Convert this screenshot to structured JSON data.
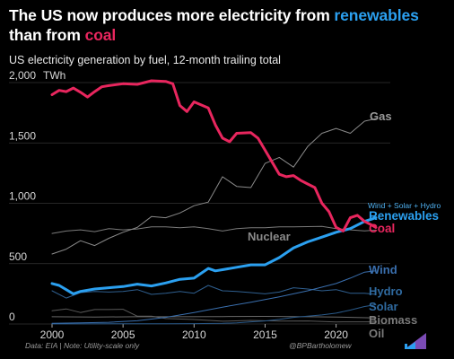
{
  "header": {
    "title_part1": "The US now produces more electricity from ",
    "title_highlight1": "renewables",
    "title_part2": "than from ",
    "title_highlight2": "coal",
    "subtitle": "US electricity generation by fuel, 12-month trailing total"
  },
  "footer": {
    "source": "Data: EIA | Note: Utility-scale only",
    "credit": "@BPBartholomew"
  },
  "colors": {
    "coal": "#e8265e",
    "renewables": "#2ba0f0",
    "gas": "#8a8a8a",
    "nuclear": "#7a7a7a",
    "wind": "#3a6fae",
    "hydro": "#2f5f8f",
    "solar": "#2a5a8a",
    "biomass": "#6a6a6a",
    "oil": "#5a5a5a",
    "grid": "#333333"
  },
  "chart_data": {
    "type": "line",
    "unit_label": "TWh",
    "xlim": [
      2000,
      2023.5
    ],
    "ylim": [
      0,
      2000
    ],
    "x_ticks": [
      "2000",
      "2005",
      "2010",
      "2015",
      "2020"
    ],
    "y_ticks": [
      "2,000",
      "1,500",
      "1,000",
      "500",
      "0"
    ],
    "annotation": "Wind + Solar + Hydro",
    "series": [
      {
        "name": "Coal",
        "label": "Coal",
        "points": [
          [
            2000,
            1900
          ],
          [
            2000.5,
            1935
          ],
          [
            2001,
            1925
          ],
          [
            2001.5,
            1955
          ],
          [
            2002,
            1920
          ],
          [
            2002.5,
            1880
          ],
          [
            2003,
            1925
          ],
          [
            2003.5,
            1965
          ],
          [
            2004,
            1975
          ],
          [
            2005,
            1990
          ],
          [
            2006,
            1985
          ],
          [
            2007,
            2015
          ],
          [
            2008,
            2010
          ],
          [
            2008.5,
            1990
          ],
          [
            2009,
            1810
          ],
          [
            2009.5,
            1760
          ],
          [
            2010,
            1840
          ],
          [
            2011,
            1790
          ],
          [
            2011.5,
            1650
          ],
          [
            2012,
            1540
          ],
          [
            2012.5,
            1510
          ],
          [
            2013,
            1580
          ],
          [
            2014,
            1585
          ],
          [
            2014.5,
            1540
          ],
          [
            2015,
            1440
          ],
          [
            2015.5,
            1340
          ],
          [
            2016,
            1240
          ],
          [
            2016.5,
            1220
          ],
          [
            2017,
            1230
          ],
          [
            2017.5,
            1190
          ],
          [
            2018,
            1160
          ],
          [
            2018.5,
            1130
          ],
          [
            2019,
            1000
          ],
          [
            2019.5,
            930
          ],
          [
            2020,
            800
          ],
          [
            2020.5,
            770
          ],
          [
            2021,
            880
          ],
          [
            2021.5,
            900
          ],
          [
            2022,
            850
          ],
          [
            2022.5,
            820
          ],
          [
            2022.8,
            800
          ]
        ]
      },
      {
        "name": "Renewables",
        "label": "Renewables",
        "points": [
          [
            2000,
            335
          ],
          [
            2000.5,
            320
          ],
          [
            2001,
            285
          ],
          [
            2001.5,
            250
          ],
          [
            2002,
            270
          ],
          [
            2003,
            290
          ],
          [
            2004,
            300
          ],
          [
            2005,
            310
          ],
          [
            2006,
            330
          ],
          [
            2007,
            315
          ],
          [
            2008,
            340
          ],
          [
            2009,
            370
          ],
          [
            2010,
            380
          ],
          [
            2011,
            460
          ],
          [
            2011.5,
            440
          ],
          [
            2012,
            450
          ],
          [
            2013,
            470
          ],
          [
            2014,
            490
          ],
          [
            2015,
            490
          ],
          [
            2016,
            550
          ],
          [
            2017,
            630
          ],
          [
            2018,
            680
          ],
          [
            2019,
            720
          ],
          [
            2020,
            760
          ],
          [
            2021,
            790
          ],
          [
            2022,
            850
          ],
          [
            2022.8,
            880
          ]
        ]
      },
      {
        "name": "Gas",
        "label": "Gas",
        "points": [
          [
            2000,
            580
          ],
          [
            2001,
            620
          ],
          [
            2002,
            690
          ],
          [
            2003,
            650
          ],
          [
            2004,
            710
          ],
          [
            2005,
            760
          ],
          [
            2006,
            800
          ],
          [
            2007,
            890
          ],
          [
            2008,
            880
          ],
          [
            2009,
            920
          ],
          [
            2010,
            980
          ],
          [
            2011,
            1010
          ],
          [
            2012,
            1220
          ],
          [
            2013,
            1140
          ],
          [
            2014,
            1130
          ],
          [
            2015,
            1330
          ],
          [
            2016,
            1380
          ],
          [
            2017,
            1300
          ],
          [
            2018,
            1470
          ],
          [
            2019,
            1580
          ],
          [
            2020,
            1620
          ],
          [
            2021,
            1580
          ],
          [
            2022,
            1680
          ],
          [
            2022.8,
            1700
          ]
        ]
      },
      {
        "name": "Nuclear",
        "label": "Nuclear",
        "points": [
          [
            2000,
            750
          ],
          [
            2001,
            770
          ],
          [
            2002,
            780
          ],
          [
            2003,
            765
          ],
          [
            2004,
            790
          ],
          [
            2005,
            780
          ],
          [
            2006,
            787
          ],
          [
            2007,
            805
          ],
          [
            2008,
            805
          ],
          [
            2009,
            798
          ],
          [
            2010,
            805
          ],
          [
            2011,
            790
          ],
          [
            2012,
            770
          ],
          [
            2013,
            790
          ],
          [
            2014,
            797
          ],
          [
            2015,
            797
          ],
          [
            2016,
            805
          ],
          [
            2017,
            805
          ],
          [
            2018,
            807
          ],
          [
            2019,
            809
          ],
          [
            2020,
            790
          ],
          [
            2021,
            780
          ],
          [
            2022,
            772
          ],
          [
            2022.8,
            778
          ]
        ]
      },
      {
        "name": "Wind",
        "label": "Wind",
        "points": [
          [
            2000,
            6
          ],
          [
            2002,
            10
          ],
          [
            2004,
            14
          ],
          [
            2006,
            27
          ],
          [
            2008,
            55
          ],
          [
            2010,
            95
          ],
          [
            2012,
            140
          ],
          [
            2014,
            180
          ],
          [
            2016,
            225
          ],
          [
            2018,
            275
          ],
          [
            2020,
            335
          ],
          [
            2021,
            380
          ],
          [
            2022,
            430
          ],
          [
            2022.8,
            440
          ]
        ]
      },
      {
        "name": "Hydro",
        "label": "Hydro",
        "points": [
          [
            2000,
            275
          ],
          [
            2001,
            215
          ],
          [
            2002,
            260
          ],
          [
            2003,
            270
          ],
          [
            2004,
            265
          ],
          [
            2005,
            270
          ],
          [
            2006,
            285
          ],
          [
            2007,
            245
          ],
          [
            2008,
            255
          ],
          [
            2009,
            270
          ],
          [
            2010,
            255
          ],
          [
            2011,
            320
          ],
          [
            2012,
            275
          ],
          [
            2013,
            270
          ],
          [
            2014,
            260
          ],
          [
            2015,
            250
          ],
          [
            2016,
            265
          ],
          [
            2017,
            300
          ],
          [
            2018,
            290
          ],
          [
            2019,
            275
          ],
          [
            2020,
            285
          ],
          [
            2021,
            255
          ],
          [
            2022,
            255
          ],
          [
            2022.8,
            245
          ]
        ]
      },
      {
        "name": "Solar",
        "label": "Solar",
        "points": [
          [
            2000,
            1
          ],
          [
            2008,
            2
          ],
          [
            2010,
            3
          ],
          [
            2012,
            5
          ],
          [
            2013,
            10
          ],
          [
            2014,
            18
          ],
          [
            2015,
            25
          ],
          [
            2016,
            38
          ],
          [
            2017,
            55
          ],
          [
            2018,
            65
          ],
          [
            2019,
            75
          ],
          [
            2020,
            90
          ],
          [
            2021,
            115
          ],
          [
            2022,
            145
          ],
          [
            2022.8,
            160
          ]
        ]
      },
      {
        "name": "Biomass",
        "label": "Biomass",
        "points": [
          [
            2000,
            60
          ],
          [
            2003,
            58
          ],
          [
            2006,
            60
          ],
          [
            2009,
            60
          ],
          [
            2012,
            62
          ],
          [
            2015,
            63
          ],
          [
            2018,
            60
          ],
          [
            2020,
            58
          ],
          [
            2022.8,
            50
          ]
        ]
      },
      {
        "name": "Oil",
        "label": "Oil",
        "points": [
          [
            2000,
            110
          ],
          [
            2001,
            125
          ],
          [
            2002,
            95
          ],
          [
            2003,
            120
          ],
          [
            2004,
            120
          ],
          [
            2005,
            122
          ],
          [
            2006,
            65
          ],
          [
            2007,
            65
          ],
          [
            2008,
            45
          ],
          [
            2010,
            37
          ],
          [
            2012,
            23
          ],
          [
            2014,
            30
          ],
          [
            2016,
            24
          ],
          [
            2018,
            25
          ],
          [
            2020,
            17
          ],
          [
            2022.8,
            18
          ]
        ]
      }
    ]
  }
}
